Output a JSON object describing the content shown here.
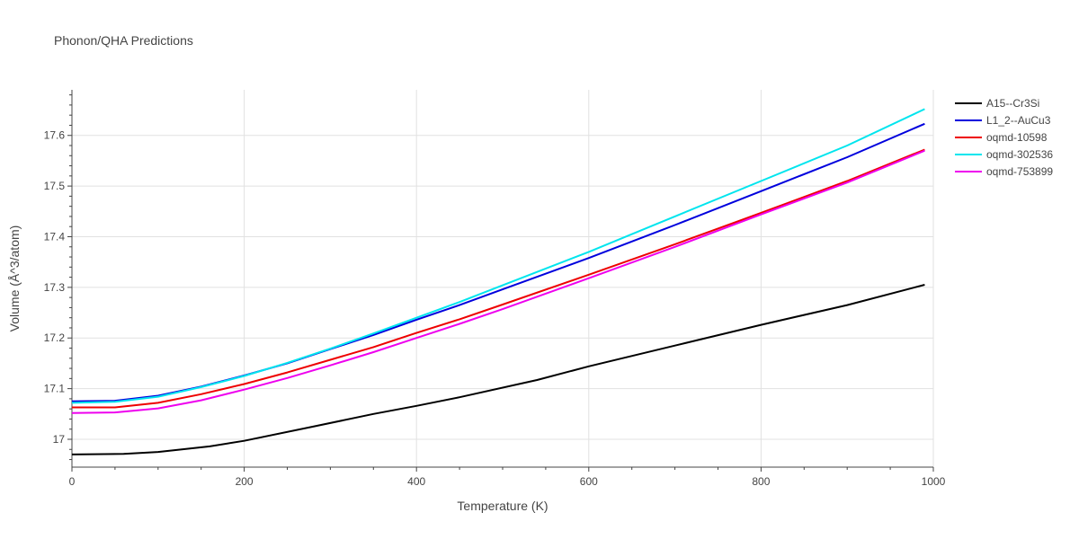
{
  "chart_data": {
    "type": "line",
    "title": "Phonon/QHA Predictions",
    "xlabel": "Temperature (K)",
    "ylabel": "Volume (Å^3/atom)",
    "xlim": [
      0,
      1000
    ],
    "ylim": [
      16.945,
      17.69
    ],
    "xticks": [
      0,
      200,
      400,
      600,
      800,
      1000
    ],
    "xtick_labels": [
      "0",
      "200",
      "400",
      "600",
      "800",
      "1000"
    ],
    "yticks": [
      17.0,
      17.1,
      17.2,
      17.3,
      17.4,
      17.5,
      17.6
    ],
    "ytick_labels": [
      "17",
      "17.1",
      "17.2",
      "17.3",
      "17.4",
      "17.5",
      "17.6"
    ],
    "grid": true,
    "legend_position": "top-right",
    "series": [
      {
        "name": "A15--Cr3Si",
        "color": "#000000",
        "x": [
          0,
          60,
          100,
          160,
          200,
          280,
          350,
          400,
          450,
          540,
          600,
          700,
          800,
          900,
          990
        ],
        "y": [
          16.97,
          16.971,
          16.975,
          16.986,
          16.997,
          17.025,
          17.05,
          17.066,
          17.083,
          17.117,
          17.144,
          17.185,
          17.226,
          17.265,
          17.305
        ]
      },
      {
        "name": "L1_2--AuCu3",
        "color": "#0000dd",
        "x": [
          0,
          50,
          100,
          150,
          200,
          250,
          300,
          350,
          400,
          450,
          500,
          600,
          700,
          800,
          900,
          990
        ],
        "y": [
          17.075,
          17.076,
          17.086,
          17.104,
          17.126,
          17.15,
          17.178,
          17.206,
          17.236,
          17.265,
          17.296,
          17.358,
          17.423,
          17.49,
          17.557,
          17.623
        ]
      },
      {
        "name": "oqmd-10598",
        "color": "#ee0000",
        "x": [
          0,
          50,
          100,
          150,
          200,
          250,
          300,
          350,
          400,
          450,
          500,
          600,
          700,
          800,
          900,
          990
        ],
        "y": [
          17.063,
          17.063,
          17.072,
          17.089,
          17.109,
          17.132,
          17.157,
          17.182,
          17.21,
          17.237,
          17.266,
          17.325,
          17.385,
          17.447,
          17.51,
          17.572
        ]
      },
      {
        "name": "oqmd-302536",
        "color": "#00e5ee",
        "x": [
          0,
          50,
          100,
          150,
          200,
          250,
          300,
          350,
          400,
          450,
          500,
          600,
          700,
          800,
          900,
          990
        ],
        "y": [
          17.072,
          17.074,
          17.084,
          17.103,
          17.125,
          17.151,
          17.179,
          17.209,
          17.24,
          17.271,
          17.304,
          17.37,
          17.44,
          17.51,
          17.58,
          17.652
        ]
      },
      {
        "name": "oqmd-753899",
        "color": "#ee00ee",
        "x": [
          0,
          50,
          100,
          150,
          200,
          250,
          300,
          350,
          400,
          450,
          500,
          600,
          700,
          800,
          900,
          990
        ],
        "y": [
          17.052,
          17.053,
          17.061,
          17.077,
          17.098,
          17.121,
          17.146,
          17.172,
          17.2,
          17.228,
          17.257,
          17.318,
          17.38,
          17.444,
          17.507,
          17.57
        ]
      }
    ]
  }
}
